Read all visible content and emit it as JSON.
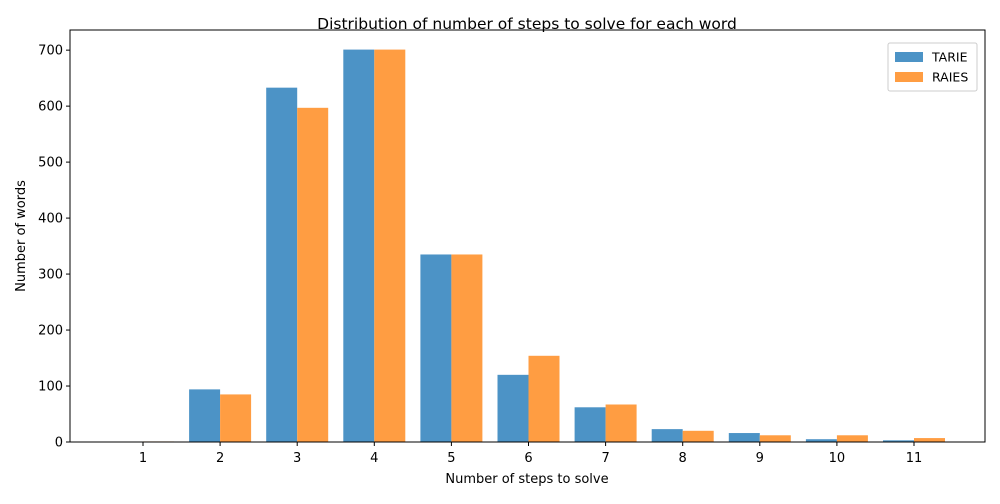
{
  "chart_data": {
    "type": "bar",
    "title": "Distribution of number of steps to solve for each word",
    "xlabel": "Number of steps to solve",
    "ylabel": "Number of words",
    "categories": [
      "1",
      "2",
      "3",
      "4",
      "5",
      "6",
      "7",
      "8",
      "9",
      "10",
      "11"
    ],
    "series": [
      {
        "name": "TARIE",
        "color": "#4c93c6",
        "values": [
          0,
          94,
          633,
          701,
          335,
          120,
          62,
          23,
          16,
          5,
          3
        ]
      },
      {
        "name": "RAIES",
        "color": "#ff9d42",
        "values": [
          1,
          85,
          597,
          701,
          335,
          154,
          67,
          20,
          12,
          12,
          7
        ]
      }
    ],
    "ylim": [
      0,
      736
    ],
    "yticks": [
      0,
      100,
      200,
      300,
      400,
      500,
      600,
      700
    ],
    "grid": false,
    "legend_position": "top-right"
  }
}
